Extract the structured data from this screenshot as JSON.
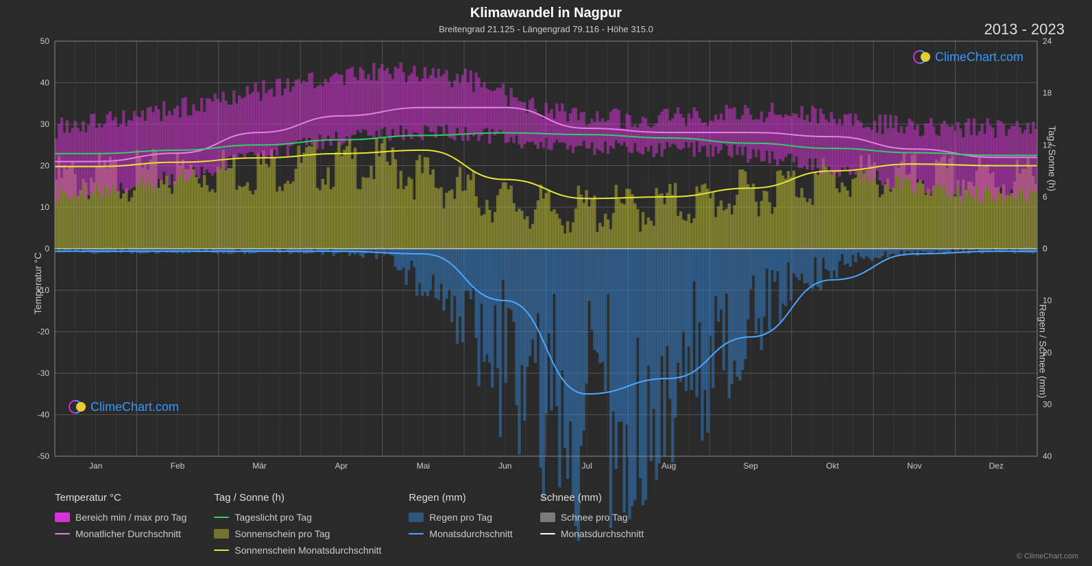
{
  "title": "Klimawandel in Nagpur",
  "subtitle": "Breitengrad 21.125 - Längengrad 79.116 - Höhe 315.0",
  "year_range": "2013 - 2023",
  "copyright": "© ClimeChart.com",
  "logo_text": "ClimeChart.com",
  "axes": {
    "left_label": "Temperatur °C",
    "right_top_label": "Tag / Sonne (h)",
    "right_bottom_label": "Regen / Schnee (mm)",
    "left_min": -50,
    "left_max": 50,
    "left_step": 10,
    "right_top_min": 0,
    "right_top_max": 24,
    "right_top_step": 6,
    "right_bottom_min": 0,
    "right_bottom_max": 40,
    "right_bottom_step": 10,
    "months": [
      "Jan",
      "Feb",
      "Mär",
      "Apr",
      "Mai",
      "Jun",
      "Jul",
      "Aug",
      "Sep",
      "Okt",
      "Nov",
      "Dez"
    ]
  },
  "colors": {
    "background": "#2a2a2a",
    "grid": "#555555",
    "grid_minor": "#444444",
    "text": "#e0e0e0",
    "temp_range": "#d633d6",
    "temp_range_fill": "#d633d680",
    "temp_avg": "#e580e5",
    "daylight": "#33cc66",
    "sunshine_fill": "#bdbd3380",
    "sunshine_line": "#e6e633",
    "rain_fill": "#3380cc80",
    "rain_line": "#4da6ff",
    "snow_fill": "#cccccc80",
    "snow_line": "#ffffff",
    "logo_blue": "#3399ff",
    "logo_magenta": "#cc33cc",
    "logo_yellow": "#e6cc33"
  },
  "legend": {
    "groups": [
      {
        "header": "Temperatur °C",
        "items": [
          {
            "type": "swatch",
            "color_key": "temp_range",
            "label": "Bereich min / max pro Tag"
          },
          {
            "type": "line",
            "color_key": "temp_avg",
            "label": "Monatlicher Durchschnitt"
          }
        ]
      },
      {
        "header": "Tag / Sonne (h)",
        "items": [
          {
            "type": "line",
            "color_key": "daylight",
            "label": "Tageslicht pro Tag"
          },
          {
            "type": "swatch",
            "color_key": "sunshine_fill",
            "label": "Sonnenschein pro Tag"
          },
          {
            "type": "line",
            "color_key": "sunshine_line",
            "label": "Sonnenschein Monatsdurchschnitt"
          }
        ]
      },
      {
        "header": "Regen (mm)",
        "items": [
          {
            "type": "swatch",
            "color_key": "rain_fill",
            "label": "Regen pro Tag"
          },
          {
            "type": "line",
            "color_key": "rain_line",
            "label": "Monatsdurchschnitt"
          }
        ]
      },
      {
        "header": "Schnee (mm)",
        "items": [
          {
            "type": "swatch",
            "color_key": "snow_fill",
            "label": "Schnee pro Tag"
          },
          {
            "type": "line",
            "color_key": "snow_line",
            "label": "Monatsdurchschnitt"
          }
        ]
      }
    ]
  },
  "chart": {
    "type": "climate-composite",
    "temp_avg_monthly": [
      21,
      23,
      28,
      32,
      34,
      34,
      29,
      28,
      28,
      27,
      24,
      22
    ],
    "temp_min_monthly": [
      13,
      15,
      20,
      25,
      28,
      28,
      25,
      24,
      24,
      21,
      17,
      13
    ],
    "temp_max_monthly": [
      29,
      32,
      36,
      40,
      43,
      41,
      33,
      31,
      32,
      33,
      30,
      29
    ],
    "daylight_monthly": [
      11.0,
      11.4,
      12.0,
      12.6,
      13.1,
      13.4,
      13.2,
      12.8,
      12.2,
      11.6,
      11.1,
      10.8
    ],
    "sunshine_monthly": [
      9.5,
      10.0,
      10.5,
      11.0,
      11.4,
      8.0,
      5.8,
      6.0,
      7.0,
      9.0,
      9.8,
      9.6
    ],
    "rain_monthly_mm": [
      0.5,
      0.5,
      0.5,
      0.5,
      1.0,
      10.0,
      28.0,
      25.0,
      17.0,
      6.0,
      1.0,
      0.5
    ],
    "snow_monthly_mm": [
      0,
      0,
      0,
      0,
      0,
      0,
      0,
      0,
      0,
      0,
      0,
      0
    ],
    "temp_range_band": {
      "upper": [
        29,
        32,
        36,
        40,
        43,
        41,
        33,
        31,
        32,
        33,
        30,
        29
      ],
      "lower": [
        13,
        15,
        20,
        25,
        28,
        28,
        25,
        24,
        24,
        21,
        17,
        13
      ]
    }
  }
}
